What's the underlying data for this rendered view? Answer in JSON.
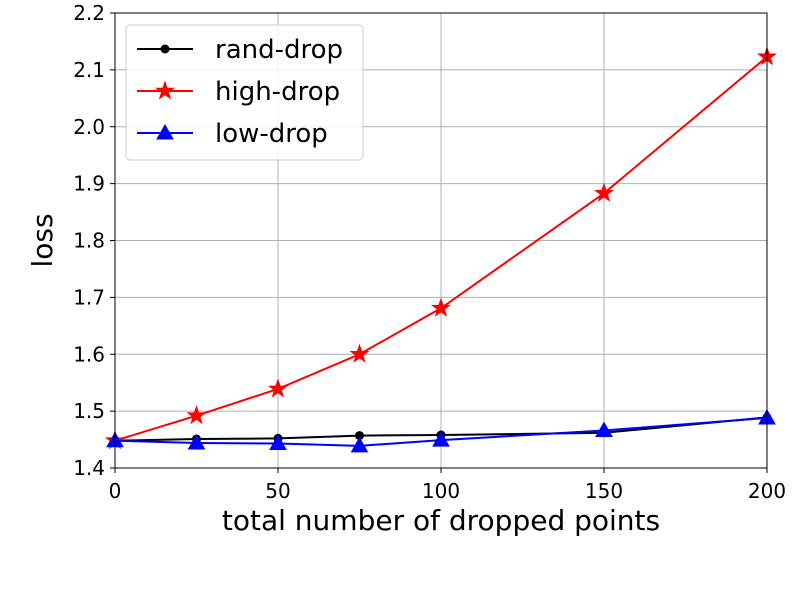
{
  "chart_data": {
    "type": "line",
    "xlabel": "total number of dropped points",
    "ylabel": "loss",
    "xlim": [
      0,
      200
    ],
    "ylim": [
      1.4,
      2.2
    ],
    "xticks": [
      "0",
      "50",
      "100",
      "150",
      "200"
    ],
    "yticks": [
      "1.4",
      "1.5",
      "1.6",
      "1.7",
      "1.8",
      "1.9",
      "2.0",
      "2.1",
      "2.2"
    ],
    "grid": true,
    "legend_position": "top-left",
    "x": [
      0,
      25,
      50,
      75,
      100,
      150,
      200
    ],
    "series": [
      {
        "name": "rand-drop",
        "color": "#000000",
        "marker": "circle",
        "values": [
          1.448,
          1.451,
          1.452,
          1.457,
          1.458,
          1.462,
          1.489
        ]
      },
      {
        "name": "high-drop",
        "color": "#ff0000",
        "marker": "star",
        "values": [
          1.448,
          1.492,
          1.539,
          1.6,
          1.681,
          1.883,
          2.123
        ]
      },
      {
        "name": "low-drop",
        "color": "#0000ff",
        "marker": "triangle",
        "values": [
          1.448,
          1.444,
          1.443,
          1.439,
          1.449,
          1.466,
          1.488
        ]
      }
    ]
  }
}
